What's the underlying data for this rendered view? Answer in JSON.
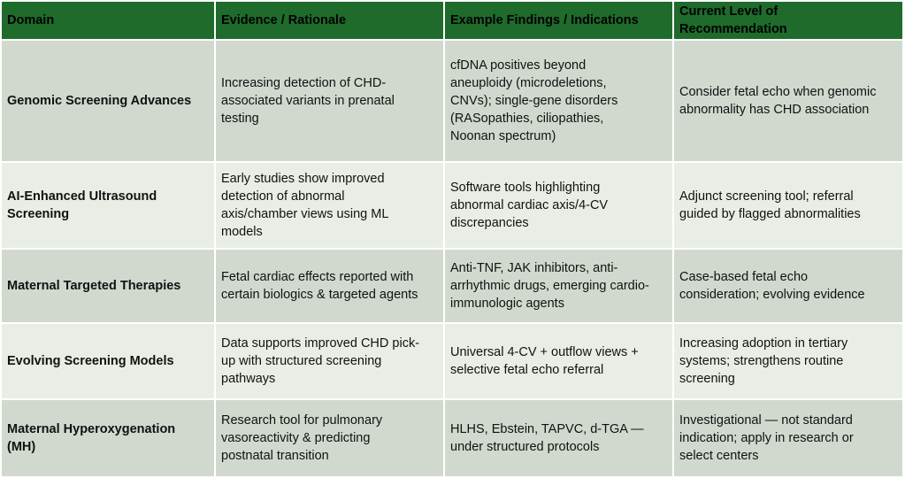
{
  "table": {
    "headers": [
      "Domain",
      "Evidence / Rationale",
      "Example Findings / Indications",
      "Current Level of\nRecommendation"
    ],
    "rows": [
      {
        "domain": "Genomic Screening Advances",
        "evidence": "Increasing detection of CHD-\nassociated variants in prenatal\ntesting",
        "findings": "cfDNA positives beyond\naneuploidy (microdeletions,\nCNVs); single-gene disorders\n(RASopathies, ciliopathies,\nNoonan spectrum)",
        "recommendation": "Consider fetal echo when genomic\nabnormality has CHD association"
      },
      {
        "domain": "AI-Enhanced Ultrasound\nScreening",
        "evidence": "Early studies show improved\ndetection of abnormal\naxis/chamber views using ML\nmodels",
        "findings": "Software tools highlighting\nabnormal cardiac axis/4-CV\ndiscrepancies",
        "recommendation": "Adjunct screening tool; referral\nguided by flagged abnormalities"
      },
      {
        "domain": "Maternal Targeted Therapies",
        "evidence": "Fetal cardiac effects reported with\ncertain biologics & targeted agents",
        "findings": "Anti-TNF, JAK inhibitors, anti-\narrhythmic drugs, emerging cardio-\nimmunologic agents",
        "recommendation": "Case-based fetal echo\nconsideration; evolving evidence"
      },
      {
        "domain": "Evolving Screening Models",
        "evidence": "Data supports improved CHD pick-\nup with structured screening\npathways",
        "findings": "Universal 4-CV + outflow views +\nselective fetal echo referral",
        "recommendation": "Increasing adoption in tertiary\nsystems; strengthens routine\nscreening"
      },
      {
        "domain": "Maternal Hyperoxygenation\n(MH)",
        "evidence": "Research tool for pulmonary\nvasoreactivity & predicting\npostnatal transition",
        "findings": "HLHS, Ebstein, TAPVC, d-TGA —\nunder structured protocols",
        "recommendation": "Investigational — not standard\nindication; apply in research or\nselect centers"
      }
    ]
  },
  "colors": {
    "header_bg": "#1e6b2c",
    "row_dark": "#d1d9cf",
    "row_light": "#e8eee6",
    "border": "#ffffff"
  }
}
